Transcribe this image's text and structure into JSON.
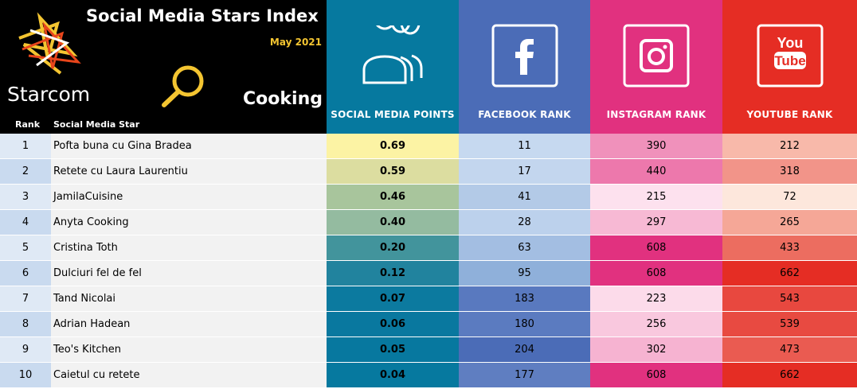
{
  "header": {
    "title": "Social Media Stars Index",
    "date": "May 2021",
    "category": "Cooking",
    "brand_logo": "Starcom",
    "rank_header": "Rank",
    "star_header": "Social Media Star",
    "columns": {
      "points": "SOCIAL MEDIA POINTS",
      "facebook": "FACEBOOK RANK",
      "instagram": "INSTAGRAM RANK",
      "youtube": "YOUTUBE RANK"
    },
    "youtube_logo_top": "You",
    "youtube_logo_bottom": "Tube",
    "icons": [
      "starcom-star-logo",
      "magnifier-icon",
      "people-icon",
      "facebook-icon",
      "instagram-icon",
      "youtube-icon"
    ]
  },
  "colors": {
    "points": "#06799f",
    "facebook": "#4b6cb7",
    "instagram": "#e1317f",
    "youtube": "#e52d24",
    "accent_yellow": "#f4c531"
  },
  "rows": [
    {
      "rank": "1",
      "name": "Pofta buna cu Gina Bradea",
      "points": "0.69",
      "facebook": "11",
      "instagram": "390",
      "youtube": "212"
    },
    {
      "rank": "2",
      "name": "Retete cu Laura Laurentiu",
      "points": "0.59",
      "facebook": "17",
      "instagram": "440",
      "youtube": "318"
    },
    {
      "rank": "3",
      "name": "JamilaCuisine",
      "points": "0.46",
      "facebook": "41",
      "instagram": "215",
      "youtube": "72"
    },
    {
      "rank": "4",
      "name": "Anyta Cooking",
      "points": "0.40",
      "facebook": "28",
      "instagram": "297",
      "youtube": "265"
    },
    {
      "rank": "5",
      "name": "Cristina Toth",
      "points": "0.20",
      "facebook": "63",
      "instagram": "608",
      "youtube": "433"
    },
    {
      "rank": "6",
      "name": "Dulciuri fel de fel",
      "points": "0.12",
      "facebook": "95",
      "instagram": "608",
      "youtube": "662"
    },
    {
      "rank": "7",
      "name": "Tand Nicolai",
      "points": "0.07",
      "facebook": "183",
      "instagram": "223",
      "youtube": "543"
    },
    {
      "rank": "8",
      "name": "Adrian Hadean",
      "points": "0.06",
      "facebook": "180",
      "instagram": "256",
      "youtube": "539"
    },
    {
      "rank": "9",
      "name": "Teo's Kitchen",
      "points": "0.05",
      "facebook": "204",
      "instagram": "302",
      "youtube": "473"
    },
    {
      "rank": "10",
      "name": "Caietul cu retete",
      "points": "0.04",
      "facebook": "177",
      "instagram": "608",
      "youtube": "662"
    }
  ]
}
